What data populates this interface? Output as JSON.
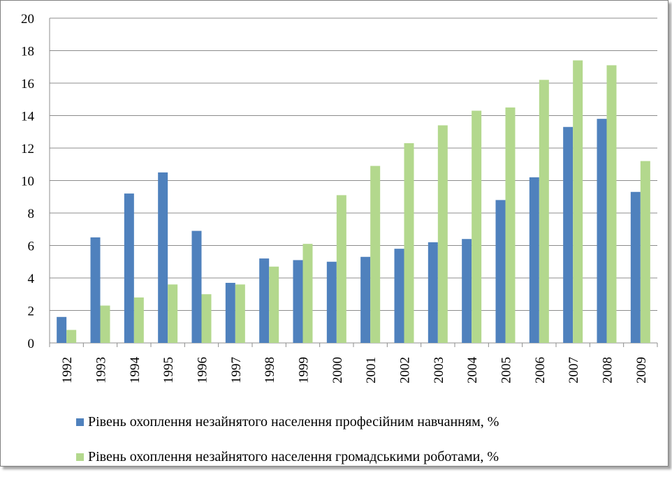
{
  "chart_data": {
    "type": "bar",
    "categories": [
      "1992",
      "1993",
      "1994",
      "1995",
      "1996",
      "1997",
      "1998",
      "1999",
      "2000",
      "2001",
      "2002",
      "2003",
      "2004",
      "2005",
      "2006",
      "2007",
      "2008",
      "2009"
    ],
    "series": [
      {
        "name": "Рівень охоплення незайнятого населення професійним навчанням, %",
        "color": "#4f81bd",
        "values": [
          1.6,
          6.5,
          9.2,
          10.5,
          6.9,
          3.7,
          5.2,
          5.1,
          5.0,
          5.3,
          5.8,
          6.2,
          6.4,
          8.8,
          10.2,
          13.3,
          13.8,
          9.3
        ]
      },
      {
        "name": "Рівень охоплення незайнятого населення громадськими роботами, %",
        "color": "#b3d88d",
        "values": [
          0.8,
          2.3,
          2.8,
          3.6,
          3.0,
          3.6,
          4.7,
          6.1,
          9.1,
          10.9,
          12.3,
          13.4,
          14.3,
          14.5,
          16.2,
          17.4,
          17.1,
          11.2
        ]
      }
    ],
    "ylim": [
      0,
      20
    ],
    "yticks": [
      0,
      2,
      4,
      6,
      8,
      10,
      12,
      14,
      16,
      18,
      20
    ],
    "grid": true,
    "legend_position": "bottom",
    "x_tick_rotation": "vertical"
  }
}
